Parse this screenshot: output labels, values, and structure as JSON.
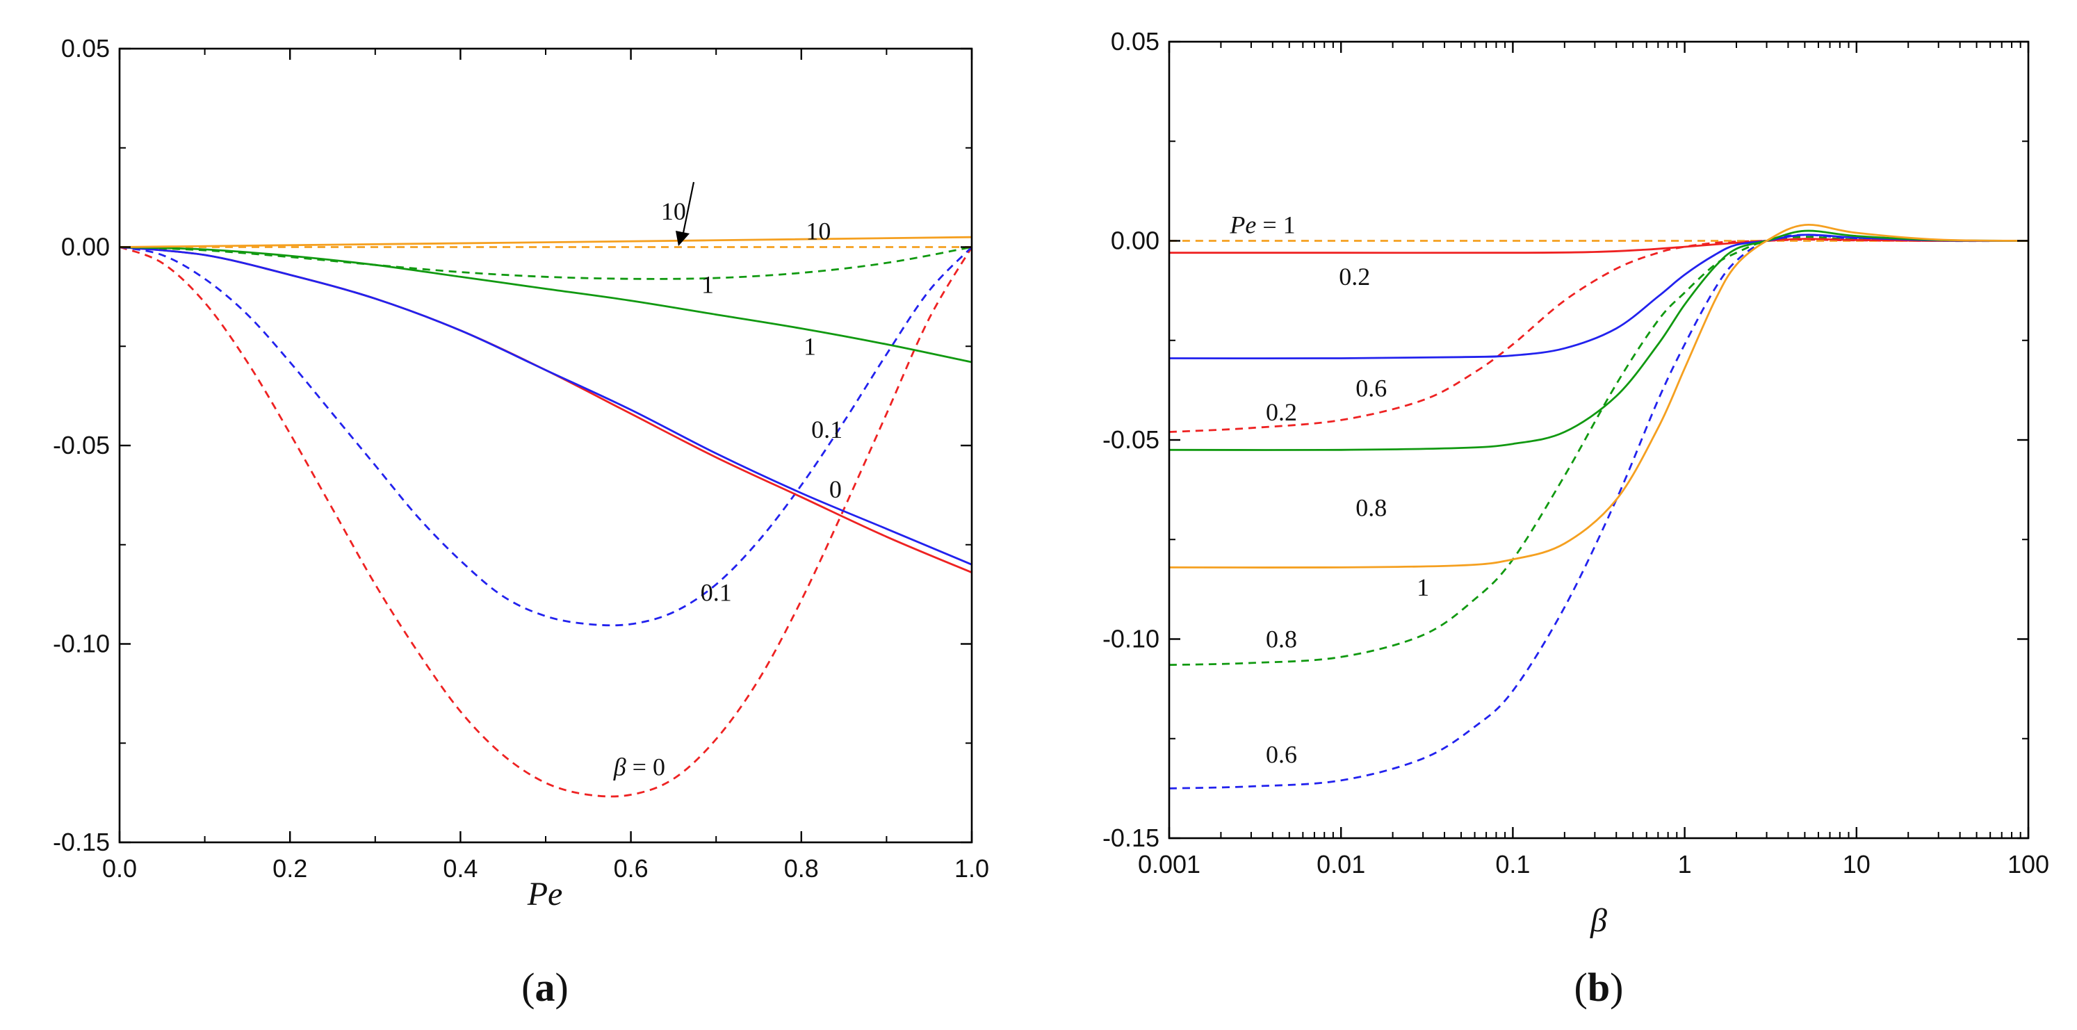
{
  "colors": {
    "red": "#ee2222",
    "blue": "#2222ee",
    "green": "#119911",
    "orange": "#f5a020"
  },
  "chart_data": [
    {
      "type": "line",
      "panel_label": "a",
      "xlabel": "Pe",
      "ylabel": "",
      "xscale": "linear",
      "xlim": [
        0,
        1.0
      ],
      "ylim": [
        -0.15,
        0.05
      ],
      "xticks": [
        "0.0",
        "0.2",
        "0.4",
        "0.6",
        "0.8",
        "1.0"
      ],
      "yticks": [
        "0.05",
        "0.00",
        "-0.05",
        "-0.10",
        "-0.15"
      ],
      "series": [
        {
          "name": "β = 0 (dashed)",
          "color": "red",
          "dash": true,
          "x": [
            0,
            0.05,
            0.1,
            0.15,
            0.2,
            0.25,
            0.3,
            0.35,
            0.4,
            0.45,
            0.5,
            0.55,
            0.6,
            0.65,
            0.7,
            0.75,
            0.8,
            0.85,
            0.9,
            0.95,
            1.0
          ],
          "y": [
            0,
            -0.004,
            -0.014,
            -0.029,
            -0.047,
            -0.066,
            -0.085,
            -0.102,
            -0.117,
            -0.128,
            -0.135,
            -0.138,
            -0.138,
            -0.134,
            -0.124,
            -0.109,
            -0.089,
            -0.066,
            -0.042,
            -0.018,
            0.0
          ]
        },
        {
          "name": "β = 0.1 (dashed)",
          "color": "blue",
          "dash": true,
          "x": [
            0,
            0.05,
            0.1,
            0.15,
            0.2,
            0.25,
            0.3,
            0.35,
            0.4,
            0.45,
            0.5,
            0.55,
            0.6,
            0.65,
            0.7,
            0.75,
            0.8,
            0.85,
            0.9,
            0.95,
            1.0
          ],
          "y": [
            0,
            -0.002,
            -0.008,
            -0.017,
            -0.029,
            -0.042,
            -0.055,
            -0.068,
            -0.079,
            -0.088,
            -0.093,
            -0.095,
            -0.095,
            -0.092,
            -0.085,
            -0.074,
            -0.06,
            -0.044,
            -0.027,
            -0.011,
            0.0
          ]
        },
        {
          "name": "β = 1 (dashed)",
          "color": "green",
          "dash": true,
          "x": [
            0,
            0.1,
            0.2,
            0.3,
            0.4,
            0.5,
            0.6,
            0.7,
            0.8,
            0.9,
            1.0
          ],
          "y": [
            0,
            -0.0008,
            -0.0025,
            -0.0045,
            -0.0063,
            -0.0075,
            -0.008,
            -0.0078,
            -0.0065,
            -0.004,
            0.0
          ]
        },
        {
          "name": "β = 10 (dashed)",
          "color": "orange",
          "dash": true,
          "x": [
            0,
            0.5,
            1.0
          ],
          "y": [
            0,
            0,
            0
          ]
        },
        {
          "name": "β = 0 (solid)",
          "color": "red",
          "dash": false,
          "x": [
            0,
            0.1,
            0.2,
            0.3,
            0.4,
            0.5,
            0.6,
            0.7,
            0.8,
            0.9,
            1.0
          ],
          "y": [
            0,
            -0.002,
            -0.007,
            -0.013,
            -0.021,
            -0.031,
            -0.042,
            -0.053,
            -0.063,
            -0.073,
            -0.082
          ]
        },
        {
          "name": "β = 0.1 (solid)",
          "color": "blue",
          "dash": false,
          "x": [
            0,
            0.1,
            0.2,
            0.3,
            0.4,
            0.5,
            0.6,
            0.7,
            0.8,
            0.9,
            1.0
          ],
          "y": [
            0,
            -0.002,
            -0.007,
            -0.013,
            -0.021,
            -0.031,
            -0.041,
            -0.052,
            -0.062,
            -0.071,
            -0.08
          ]
        },
        {
          "name": "β = 1 (solid)",
          "color": "green",
          "dash": false,
          "x": [
            0,
            0.1,
            0.2,
            0.3,
            0.4,
            0.5,
            0.6,
            0.7,
            0.8,
            0.9,
            1.0
          ],
          "y": [
            0,
            -0.0006,
            -0.0022,
            -0.0045,
            -0.0075,
            -0.0105,
            -0.0135,
            -0.017,
            -0.0205,
            -0.0245,
            -0.029
          ]
        },
        {
          "name": "β = 10 (solid)",
          "color": "orange",
          "dash": false,
          "x": [
            0,
            0.5,
            1.0
          ],
          "y": [
            0,
            0.0012,
            0.0025
          ]
        }
      ],
      "annotations": [
        {
          "text": "10",
          "x": 0.65,
          "y": 0.009
        },
        {
          "text": "10",
          "x": 0.82,
          "y": 0.004
        },
        {
          "text": "1",
          "x": 0.69,
          "y": -0.0095
        },
        {
          "text": "1",
          "x": 0.81,
          "y": -0.025
        },
        {
          "text": "0.1",
          "x": 0.83,
          "y": -0.046
        },
        {
          "text": "0",
          "x": 0.84,
          "y": -0.061
        },
        {
          "text": "0.1",
          "x": 0.7,
          "y": -0.087
        },
        {
          "text": "β = 0",
          "x": 0.61,
          "y": -0.131
        }
      ]
    },
    {
      "type": "line",
      "panel_label": "b",
      "xlabel": "β",
      "ylabel": "",
      "xscale": "log",
      "xlim": [
        0.001,
        100
      ],
      "ylim": [
        -0.15,
        0.05
      ],
      "xticks": [
        "0.001",
        "0.01",
        "0.1",
        "1",
        "10",
        "100"
      ],
      "yticks": [
        "0.05",
        "0.00",
        "-0.05",
        "-0.10",
        "-0.15"
      ],
      "series": [
        {
          "name": "Pe = 0.6 (dashed)",
          "color": "blue",
          "dash": true,
          "x": [
            0.001,
            0.003,
            0.01,
            0.03,
            0.06,
            0.1,
            0.2,
            0.4,
            0.7,
            1,
            1.5,
            2,
            3,
            5,
            10,
            30,
            100
          ],
          "y": [
            -0.1375,
            -0.137,
            -0.1355,
            -0.13,
            -0.122,
            -0.113,
            -0.092,
            -0.065,
            -0.04,
            -0.026,
            -0.012,
            -0.005,
            0.0,
            0.0015,
            0.0005,
            0,
            0
          ]
        },
        {
          "name": "Pe = 0.8 (dashed)",
          "color": "green",
          "dash": true,
          "x": [
            0.001,
            0.003,
            0.01,
            0.03,
            0.06,
            0.1,
            0.2,
            0.4,
            0.7,
            1,
            1.5,
            2,
            3,
            5,
            10,
            30,
            100
          ],
          "y": [
            -0.1065,
            -0.106,
            -0.1045,
            -0.099,
            -0.09,
            -0.08,
            -0.059,
            -0.036,
            -0.02,
            -0.013,
            -0.006,
            -0.003,
            0.0,
            0.001,
            0.0003,
            0,
            0
          ]
        },
        {
          "name": "Pe = 0.2 (dashed)",
          "color": "red",
          "dash": true,
          "x": [
            0.001,
            0.003,
            0.01,
            0.03,
            0.06,
            0.1,
            0.2,
            0.4,
            0.7,
            1,
            1.5,
            2,
            3,
            5,
            10,
            30,
            100
          ],
          "y": [
            -0.048,
            -0.047,
            -0.045,
            -0.04,
            -0.033,
            -0.026,
            -0.015,
            -0.007,
            -0.003,
            -0.0015,
            -0.0005,
            -0.0002,
            0.0,
            0.0003,
            0.0001,
            0,
            0
          ]
        },
        {
          "name": "Pe = 1 (dashed)",
          "color": "orange",
          "dash": true,
          "x": [
            0.001,
            1,
            100
          ],
          "y": [
            0,
            0,
            0
          ]
        },
        {
          "name": "Pe = 0.2 (solid)",
          "color": "red",
          "dash": false,
          "x": [
            0.001,
            0.01,
            0.1,
            0.3,
            0.6,
            1,
            2,
            3,
            5,
            10,
            30,
            100
          ],
          "y": [
            -0.003,
            -0.003,
            -0.003,
            -0.0028,
            -0.0022,
            -0.0015,
            -0.0005,
            0.0,
            0.0005,
            0.0002,
            0,
            0
          ]
        },
        {
          "name": "Pe = 0.6 (solid)",
          "color": "blue",
          "dash": false,
          "x": [
            0.001,
            0.01,
            0.05,
            0.1,
            0.2,
            0.4,
            0.7,
            1,
            1.5,
            2,
            3,
            5,
            10,
            30,
            100
          ],
          "y": [
            -0.0295,
            -0.0295,
            -0.0292,
            -0.0288,
            -0.027,
            -0.022,
            -0.014,
            -0.0085,
            -0.0035,
            -0.001,
            0.0,
            0.0015,
            0.0008,
            0.0001,
            0
          ]
        },
        {
          "name": "Pe = 0.8 (solid)",
          "color": "green",
          "dash": false,
          "x": [
            0.001,
            0.01,
            0.05,
            0.1,
            0.2,
            0.4,
            0.7,
            1,
            1.5,
            2,
            3,
            5,
            10,
            30,
            100
          ],
          "y": [
            -0.0525,
            -0.0525,
            -0.052,
            -0.051,
            -0.048,
            -0.039,
            -0.026,
            -0.016,
            -0.0065,
            -0.002,
            0.0,
            0.0025,
            0.0012,
            0.0002,
            0
          ]
        },
        {
          "name": "Pe = 1 (solid)",
          "color": "orange",
          "dash": false,
          "x": [
            0.001,
            0.01,
            0.05,
            0.1,
            0.2,
            0.4,
            0.7,
            1,
            1.5,
            2,
            3,
            5,
            10,
            30,
            100
          ],
          "y": [
            -0.082,
            -0.082,
            -0.0815,
            -0.08,
            -0.076,
            -0.065,
            -0.047,
            -0.032,
            -0.015,
            -0.006,
            0.0,
            0.004,
            0.002,
            0.0003,
            0
          ]
        }
      ],
      "annotations": [
        {
          "text": "Pe = 1",
          "x": 0.0035,
          "y": 0.004
        },
        {
          "text": "0.2",
          "x": 0.012,
          "y": -0.009
        },
        {
          "text": "0.6",
          "x": 0.015,
          "y": -0.037
        },
        {
          "text": "0.2",
          "x": 0.0045,
          "y": -0.043
        },
        {
          "text": "0.8",
          "x": 0.015,
          "y": -0.067
        },
        {
          "text": "1",
          "x": 0.03,
          "y": -0.087
        },
        {
          "text": "0.8",
          "x": 0.0045,
          "y": -0.1
        },
        {
          "text": "0.6",
          "x": 0.0045,
          "y": -0.129
        }
      ]
    }
  ]
}
